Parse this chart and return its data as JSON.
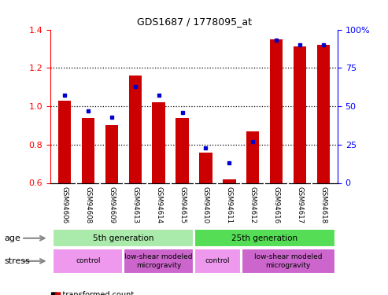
{
  "title": "GDS1687 / 1778095_at",
  "samples": [
    "GSM94606",
    "GSM94608",
    "GSM94609",
    "GSM94613",
    "GSM94614",
    "GSM94615",
    "GSM94610",
    "GSM94611",
    "GSM94612",
    "GSM94616",
    "GSM94617",
    "GSM94618"
  ],
  "transformed_count": [
    1.03,
    0.94,
    0.9,
    1.16,
    1.02,
    0.94,
    0.76,
    0.62,
    0.87,
    1.35,
    1.31,
    1.32
  ],
  "percentile_rank": [
    57,
    47,
    43,
    63,
    57,
    46,
    23,
    13,
    27,
    93,
    90,
    90
  ],
  "ylim_left": [
    0.6,
    1.4
  ],
  "ylim_right": [
    0,
    100
  ],
  "yticks_left": [
    0.6,
    0.8,
    1.0,
    1.2,
    1.4
  ],
  "yticks_right": [
    0,
    25,
    50,
    75,
    100
  ],
  "bar_color": "#cc0000",
  "dot_color": "#0000cc",
  "plot_bg": "#ffffff",
  "sample_label_bg": "#cccccc",
  "sample_label_divider": "#ffffff",
  "age_row": [
    {
      "label": "5th generation",
      "start": 0,
      "end": 6,
      "color": "#aaeaaa"
    },
    {
      "label": "25th generation",
      "start": 6,
      "end": 12,
      "color": "#55dd55"
    }
  ],
  "stress_row": [
    {
      "label": "control",
      "start": 0,
      "end": 3,
      "color": "#ee99ee"
    },
    {
      "label": "low-shear modeled\nmicrogravity",
      "start": 3,
      "end": 6,
      "color": "#cc66cc"
    },
    {
      "label": "control",
      "start": 6,
      "end": 8,
      "color": "#ee99ee"
    },
    {
      "label": "low-shear modeled\nmicrogravity",
      "start": 8,
      "end": 12,
      "color": "#cc66cc"
    }
  ],
  "dotted_lines": [
    0.8,
    1.0,
    1.2
  ],
  "bar_width": 0.55,
  "label_age": "age",
  "label_stress": "stress",
  "figsize": [
    4.93,
    3.75
  ],
  "dpi": 100
}
